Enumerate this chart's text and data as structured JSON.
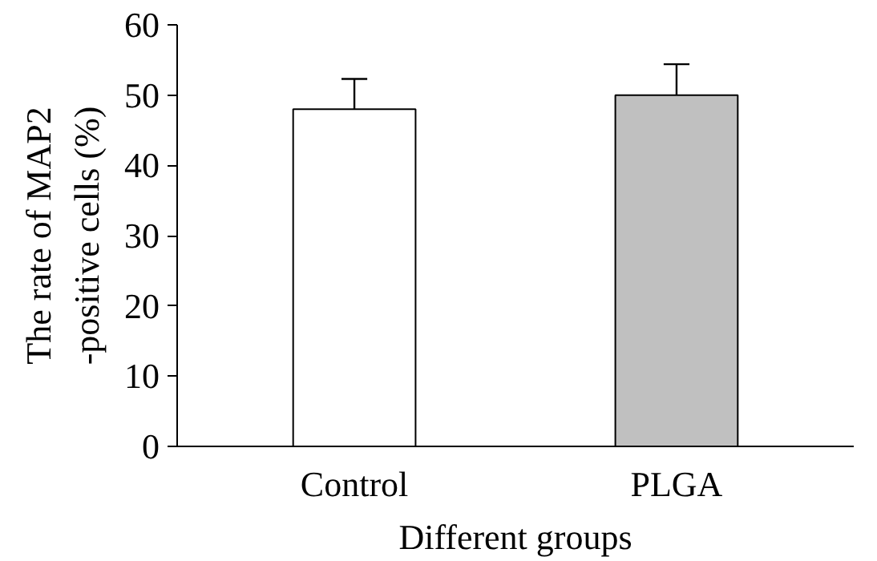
{
  "chart_data": {
    "type": "bar",
    "xlabel": "Different groups",
    "ylabel": "The rate of MAP2\n-positive cells (%)",
    "categories": [
      "Control",
      "PLGA"
    ],
    "values": [
      48,
      50
    ],
    "colors": [
      "#ffffff",
      "#c0c0c0"
    ],
    "errors": [
      [
        48,
        52.3
      ],
      [
        50,
        54.4
      ]
    ],
    "ylim": [
      0,
      60
    ],
    "yticks": [
      0,
      10,
      20,
      30,
      40,
      50,
      60
    ],
    "grid": false
  }
}
